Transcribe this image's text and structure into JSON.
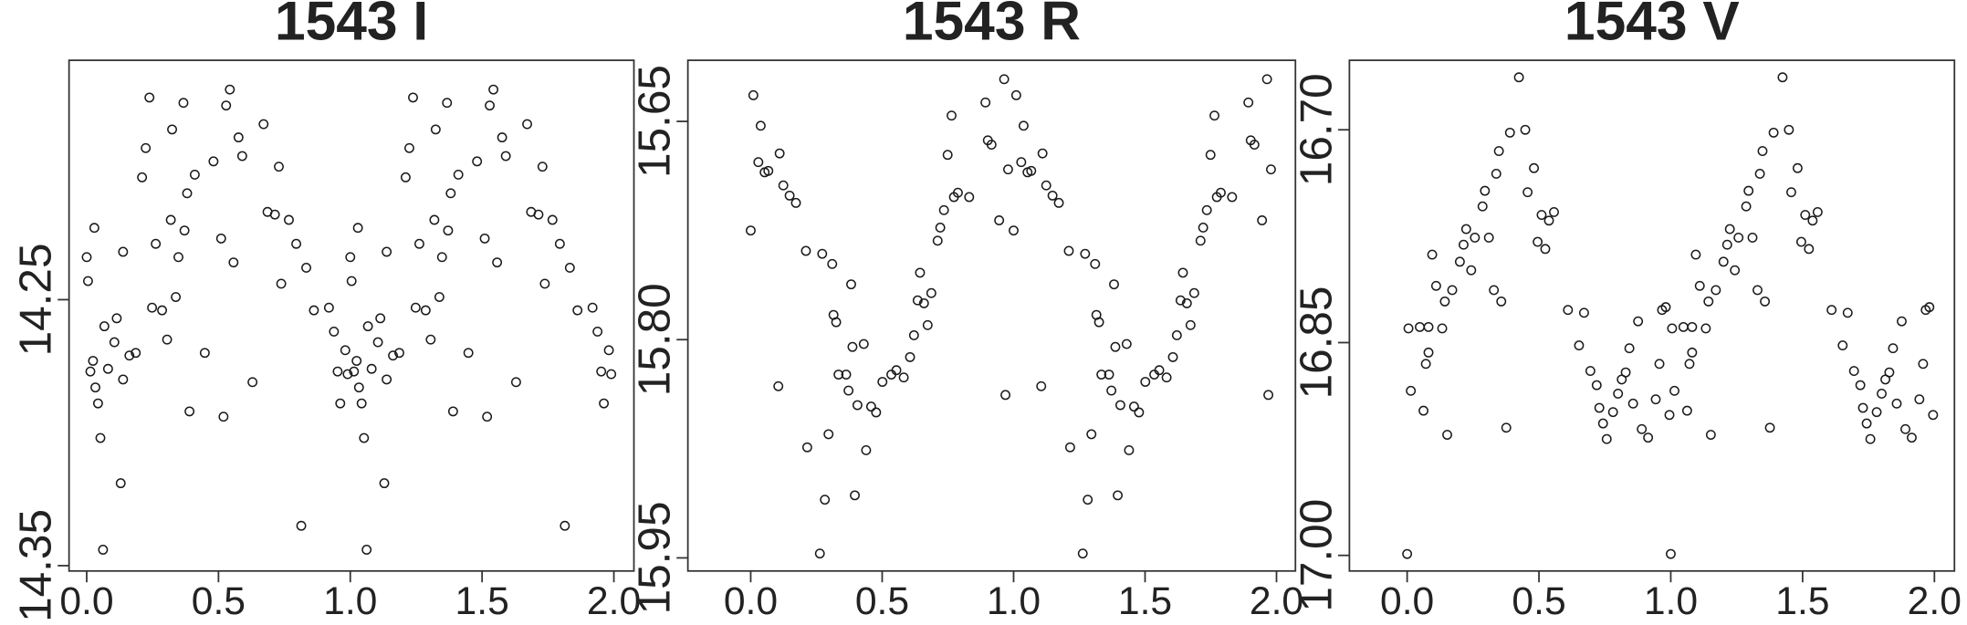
{
  "chart_data": [
    {
      "type": "scatter",
      "title": "1543 I",
      "color": "#1a1a1a",
      "xlim": [
        -0.067,
        2.076
      ],
      "ylim": [
        14.352,
        14.16
      ],
      "xticks": [
        {
          "value": 0,
          "label": "0.0"
        },
        {
          "value": 0.5,
          "label": "0.5"
        },
        {
          "value": 1,
          "label": "1.0"
        },
        {
          "value": 1.5,
          "label": "1.5"
        },
        {
          "value": 2,
          "label": "2.0"
        }
      ],
      "yticks": [
        14.25,
        14.35
      ],
      "x": [
        0.0,
        0.005,
        0.014,
        0.024,
        0.029,
        0.033,
        0.043,
        0.052,
        0.062,
        0.067,
        0.081,
        0.105,
        0.114,
        0.129,
        0.138,
        0.138,
        0.162,
        0.186,
        0.21,
        0.224,
        0.238,
        0.248,
        0.262,
        0.286,
        0.305,
        0.319,
        0.324,
        0.338,
        0.348,
        0.367,
        0.371,
        0.381,
        0.39,
        0.41,
        0.448,
        0.481,
        0.51,
        0.519,
        0.529,
        0.543,
        0.557,
        0.576,
        0.59,
        0.629,
        0.671,
        0.686,
        0.714,
        0.729,
        0.738,
        0.767,
        0.795,
        0.814,
        0.833,
        0.862,
        0.919,
        0.938,
        0.952,
        0.962,
        0.981,
        0.99,
        1.0,
        1.005,
        1.014,
        1.024,
        1.029,
        1.033,
        1.043,
        1.052,
        1.062,
        1.067,
        1.081,
        1.105,
        1.114,
        1.129,
        1.138,
        1.138,
        1.162,
        1.186,
        1.21,
        1.224,
        1.238,
        1.248,
        1.262,
        1.286,
        1.305,
        1.319,
        1.324,
        1.338,
        1.348,
        1.367,
        1.371,
        1.381,
        1.39,
        1.41,
        1.448,
        1.481,
        1.51,
        1.519,
        1.529,
        1.543,
        1.557,
        1.576,
        1.59,
        1.629,
        1.671,
        1.686,
        1.714,
        1.729,
        1.738,
        1.767,
        1.795,
        1.814,
        1.833,
        1.862,
        1.919,
        1.938,
        1.952,
        1.962,
        1.981,
        1.99
      ],
      "y": [
        14.234,
        14.243,
        14.277,
        14.273,
        14.223,
        14.283,
        14.289,
        14.302,
        14.344,
        14.26,
        14.276,
        14.266,
        14.257,
        14.319,
        14.28,
        14.232,
        14.271,
        14.27,
        14.204,
        14.193,
        14.174,
        14.253,
        14.229,
        14.254,
        14.265,
        14.22,
        14.186,
        14.249,
        14.234,
        14.176,
        14.224,
        14.21,
        14.292,
        14.203,
        14.27,
        14.198,
        14.227,
        14.294,
        14.177,
        14.171,
        14.236,
        14.189,
        14.196,
        14.281,
        14.184,
        14.217,
        14.218,
        14.2,
        14.244,
        14.22,
        14.229,
        14.335,
        14.238,
        14.254,
        14.253,
        14.262,
        14.277,
        14.289,
        14.269,
        14.278,
        14.234,
        14.243,
        14.277,
        14.273,
        14.223,
        14.283,
        14.289,
        14.302,
        14.344,
        14.26,
        14.276,
        14.266,
        14.257,
        14.319,
        14.28,
        14.232,
        14.271,
        14.27,
        14.204,
        14.193,
        14.174,
        14.253,
        14.229,
        14.254,
        14.265,
        14.22,
        14.186,
        14.249,
        14.234,
        14.176,
        14.224,
        14.21,
        14.292,
        14.203,
        14.27,
        14.198,
        14.227,
        14.294,
        14.177,
        14.171,
        14.236,
        14.189,
        14.196,
        14.281,
        14.184,
        14.217,
        14.218,
        14.2,
        14.244,
        14.22,
        14.229,
        14.335,
        14.238,
        14.254,
        14.253,
        14.262,
        14.277,
        14.289,
        14.269,
        14.278
      ]
    },
    {
      "type": "scatter",
      "title": "1543 R",
      "color": "#1a1a1a",
      "xlim": [
        -0.239,
        2.072
      ],
      "ylim": [
        15.959,
        15.608
      ],
      "xticks": [
        {
          "value": 0,
          "label": "0.0"
        },
        {
          "value": 0.5,
          "label": "0.5"
        },
        {
          "value": 1,
          "label": "1.0"
        },
        {
          "value": 1.5,
          "label": "1.5"
        },
        {
          "value": 2,
          "label": "2.0"
        }
      ],
      "yticks": [
        15.65,
        {
          "value": 15.8,
          "label": "15.80"
        },
        15.95
      ],
      "x": [
        0.0,
        0.01,
        0.029,
        0.038,
        0.053,
        0.067,
        0.11,
        0.105,
        0.124,
        0.148,
        0.172,
        0.21,
        0.215,
        0.263,
        0.272,
        0.282,
        0.296,
        0.31,
        0.315,
        0.325,
        0.334,
        0.363,
        0.372,
        0.382,
        0.387,
        0.396,
        0.406,
        0.43,
        0.439,
        0.458,
        0.477,
        0.501,
        0.535,
        0.554,
        0.582,
        0.606,
        0.621,
        0.635,
        0.644,
        0.659,
        0.673,
        0.687,
        0.711,
        0.721,
        0.735,
        0.749,
        0.764,
        0.773,
        0.788,
        0.831,
        0.893,
        0.902,
        0.916,
        0.945,
        0.964,
        0.969,
        0.979,
        1.0,
        1.01,
        1.029,
        1.038,
        1.053,
        1.067,
        1.11,
        1.105,
        1.124,
        1.148,
        1.172,
        1.21,
        1.215,
        1.263,
        1.272,
        1.282,
        1.296,
        1.31,
        1.315,
        1.325,
        1.334,
        1.363,
        1.372,
        1.382,
        1.387,
        1.396,
        1.406,
        1.43,
        1.439,
        1.458,
        1.477,
        1.501,
        1.535,
        1.554,
        1.582,
        1.606,
        1.621,
        1.635,
        1.644,
        1.659,
        1.673,
        1.687,
        1.711,
        1.721,
        1.735,
        1.749,
        1.764,
        1.773,
        1.788,
        1.831,
        1.893,
        1.902,
        1.916,
        1.945,
        1.964,
        1.969,
        1.979
      ],
      "y": [
        15.725,
        15.632,
        15.678,
        15.653,
        15.685,
        15.684,
        15.672,
        15.832,
        15.694,
        15.701,
        15.706,
        15.739,
        15.874,
        15.947,
        15.741,
        15.91,
        15.865,
        15.748,
        15.783,
        15.788,
        15.824,
        15.824,
        15.835,
        15.762,
        15.805,
        15.907,
        15.845,
        15.803,
        15.876,
        15.846,
        15.85,
        15.829,
        15.824,
        15.821,
        15.826,
        15.812,
        15.797,
        15.773,
        15.754,
        15.775,
        15.79,
        15.768,
        15.732,
        15.723,
        15.711,
        15.673,
        15.646,
        15.702,
        15.699,
        15.702,
        15.637,
        15.663,
        15.666,
        15.718,
        15.621,
        15.838,
        15.683,
        15.725,
        15.632,
        15.678,
        15.653,
        15.685,
        15.684,
        15.672,
        15.832,
        15.694,
        15.701,
        15.706,
        15.739,
        15.874,
        15.947,
        15.741,
        15.91,
        15.865,
        15.748,
        15.783,
        15.788,
        15.824,
        15.824,
        15.835,
        15.762,
        15.805,
        15.907,
        15.845,
        15.803,
        15.876,
        15.846,
        15.85,
        15.829,
        15.824,
        15.821,
        15.826,
        15.812,
        15.797,
        15.773,
        15.754,
        15.775,
        15.79,
        15.768,
        15.732,
        15.723,
        15.711,
        15.673,
        15.646,
        15.702,
        15.699,
        15.702,
        15.637,
        15.663,
        15.666,
        15.718,
        15.621,
        15.838,
        15.683
      ]
    },
    {
      "type": "scatter",
      "title": "1543 V",
      "color": "#1a1a1a",
      "xlim": [
        -0.219,
        2.076
      ],
      "ylim": [
        17.011,
        16.651
      ],
      "xticks": [
        {
          "value": 0,
          "label": "0.0"
        },
        {
          "value": 0.5,
          "label": "0.5"
        },
        {
          "value": 1,
          "label": "1.0"
        },
        {
          "value": 1.5,
          "label": "1.5"
        },
        {
          "value": 2,
          "label": "2.0"
        }
      ],
      "yticks": [
        {
          "value": 16.7,
          "label": "16.70"
        },
        16.85,
        {
          "value": 17,
          "label": "17.00"
        }
      ],
      "x": [
        0.0,
        0.005,
        0.014,
        0.048,
        0.062,
        0.071,
        0.081,
        0.081,
        0.095,
        0.11,
        0.133,
        0.143,
        0.152,
        0.171,
        0.2,
        0.214,
        0.224,
        0.243,
        0.257,
        0.286,
        0.295,
        0.31,
        0.329,
        0.338,
        0.348,
        0.357,
        0.376,
        0.39,
        0.424,
        0.448,
        0.457,
        0.481,
        0.495,
        0.51,
        0.524,
        0.538,
        0.557,
        0.61,
        0.652,
        0.671,
        0.695,
        0.719,
        0.729,
        0.743,
        0.757,
        0.781,
        0.8,
        0.814,
        0.829,
        0.843,
        0.857,
        0.876,
        0.89,
        0.914,
        0.943,
        0.957,
        0.967,
        0.981,
        0.995,
        1.0,
        1.005,
        1.014,
        1.048,
        1.062,
        1.071,
        1.081,
        1.081,
        1.095,
        1.11,
        1.133,
        1.143,
        1.152,
        1.171,
        1.2,
        1.214,
        1.224,
        1.243,
        1.257,
        1.286,
        1.295,
        1.31,
        1.329,
        1.338,
        1.348,
        1.357,
        1.376,
        1.39,
        1.424,
        1.448,
        1.457,
        1.481,
        1.495,
        1.51,
        1.524,
        1.538,
        1.557,
        1.61,
        1.652,
        1.671,
        1.695,
        1.719,
        1.729,
        1.743,
        1.757,
        1.781,
        1.8,
        1.814,
        1.829,
        1.843,
        1.857,
        1.876,
        1.89,
        1.914,
        1.943,
        1.957,
        1.967,
        1.981,
        1.995
      ],
      "y": [
        16.999,
        16.84,
        16.884,
        16.839,
        16.898,
        16.865,
        16.857,
        16.839,
        16.788,
        16.81,
        16.84,
        16.821,
        16.915,
        16.813,
        16.793,
        16.781,
        16.77,
        16.799,
        16.776,
        16.754,
        16.743,
        16.776,
        16.813,
        16.731,
        16.715,
        16.821,
        16.91,
        16.702,
        16.663,
        16.7,
        16.744,
        16.727,
        16.779,
        16.76,
        16.784,
        16.764,
        16.758,
        16.827,
        16.852,
        16.829,
        16.87,
        16.88,
        16.896,
        16.907,
        16.918,
        16.899,
        16.886,
        16.876,
        16.871,
        16.854,
        16.893,
        16.835,
        16.911,
        16.917,
        16.89,
        16.865,
        16.827,
        16.825,
        16.901,
        16.999,
        16.84,
        16.884,
        16.839,
        16.898,
        16.865,
        16.857,
        16.839,
        16.788,
        16.81,
        16.84,
        16.821,
        16.915,
        16.813,
        16.793,
        16.781,
        16.77,
        16.799,
        16.776,
        16.754,
        16.743,
        16.776,
        16.813,
        16.731,
        16.715,
        16.821,
        16.91,
        16.702,
        16.663,
        16.7,
        16.744,
        16.727,
        16.779,
        16.76,
        16.784,
        16.764,
        16.758,
        16.827,
        16.852,
        16.829,
        16.87,
        16.88,
        16.896,
        16.907,
        16.918,
        16.899,
        16.886,
        16.876,
        16.871,
        16.854,
        16.893,
        16.835,
        16.911,
        16.917,
        16.89,
        16.865,
        16.827,
        16.825,
        16.901
      ]
    }
  ]
}
